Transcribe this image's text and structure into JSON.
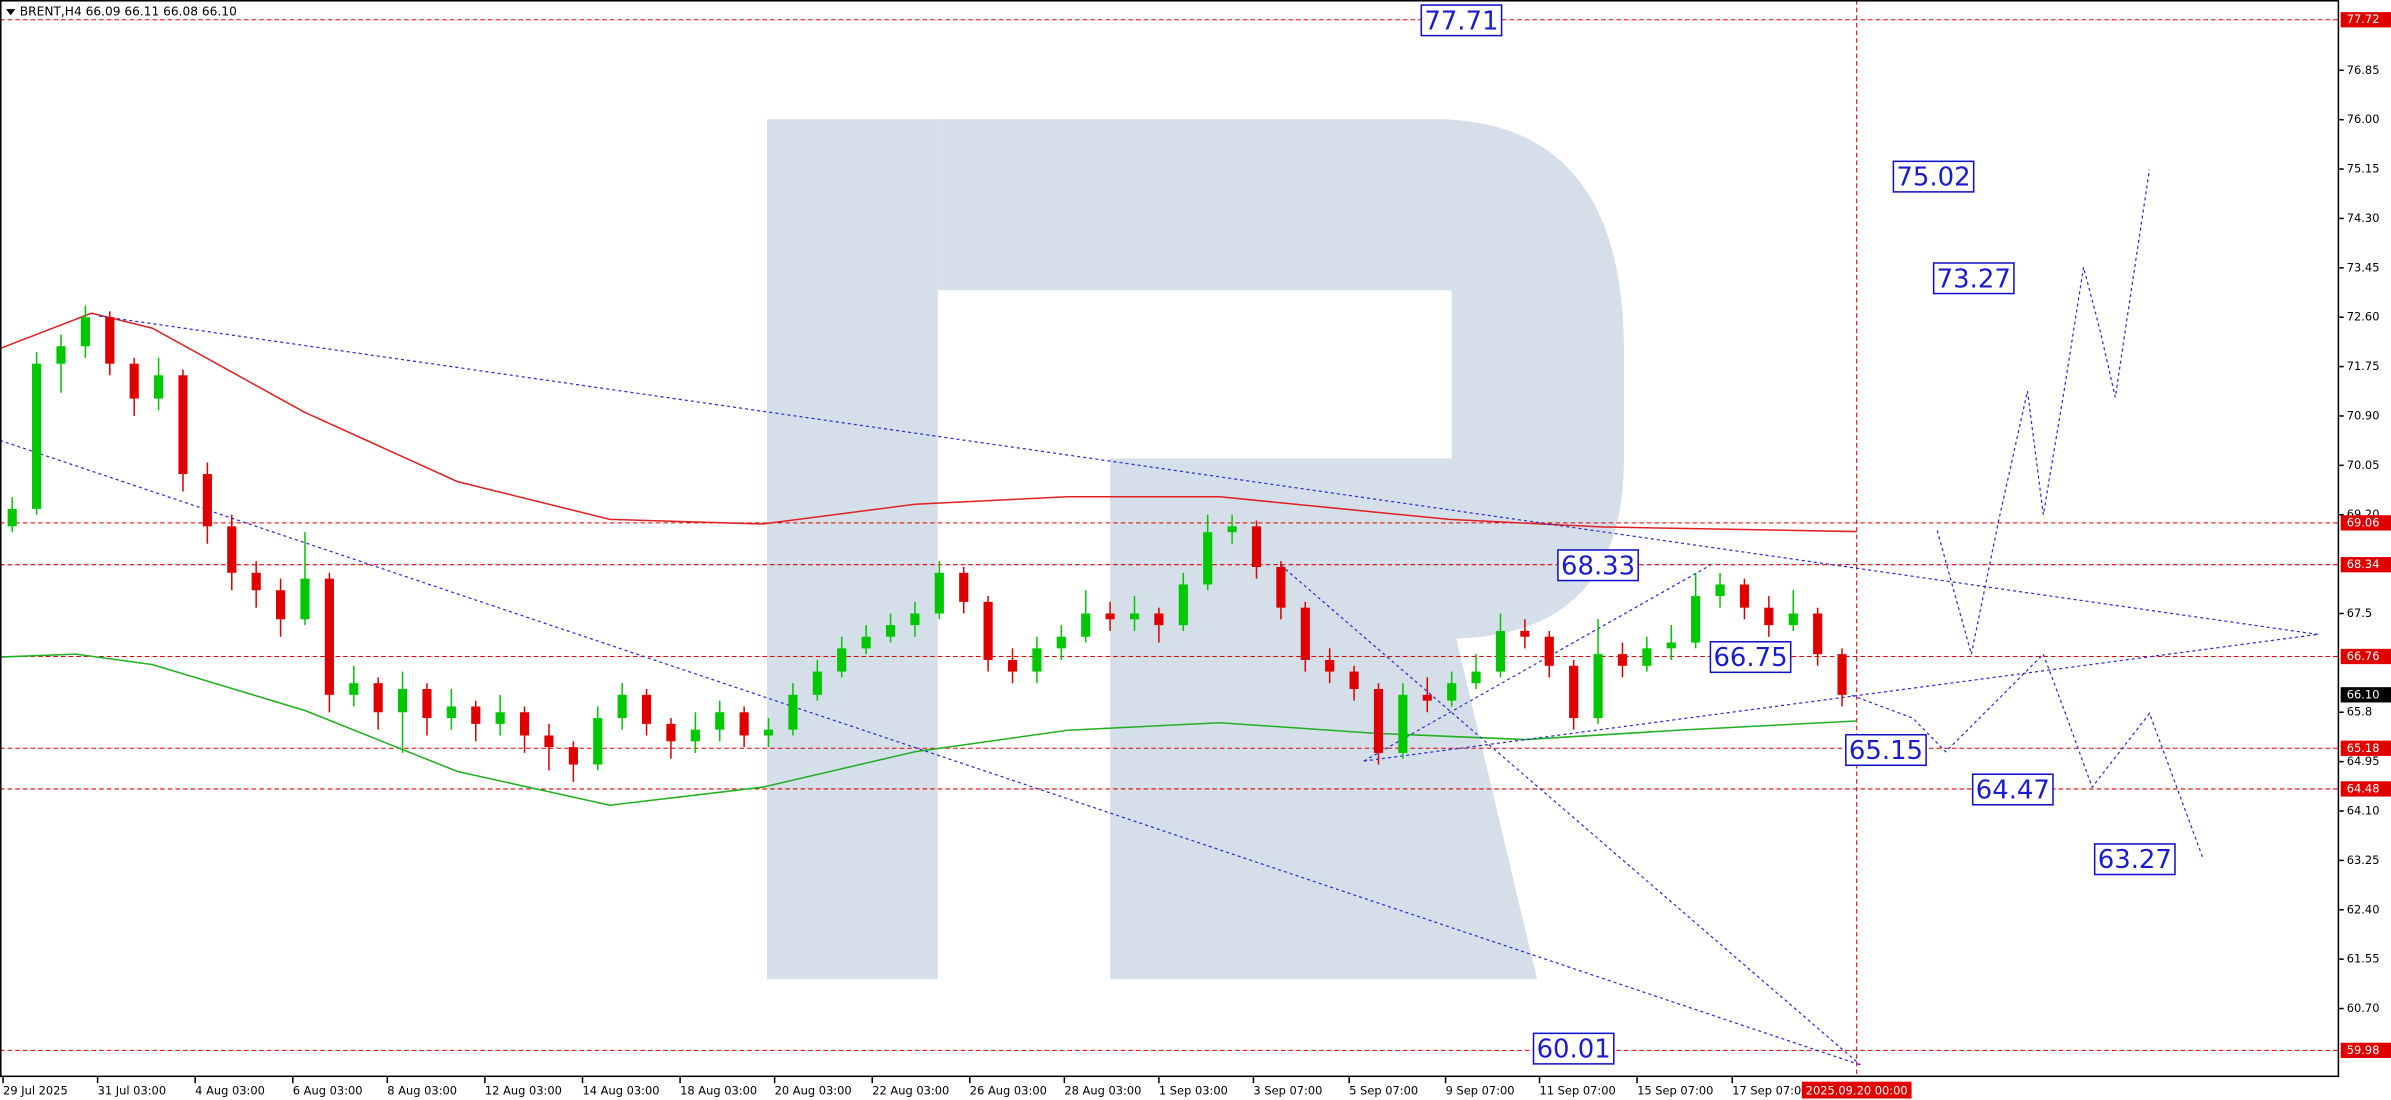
{
  "chart_data": {
    "type": "candlestick",
    "title": "BRENT,H4  66.09 66.11 66.08 66.10",
    "xlim": [
      -0.5,
      95.375
    ],
    "ylim": [
      59.52,
      78.06
    ],
    "yticks": [
      76.85,
      {
        "value": 76,
        "label": "76.00"
      },
      75.15,
      {
        "value": 74.3,
        "label": "74.30"
      },
      73.45,
      {
        "value": 72.6,
        "label": "72.60"
      },
      71.75,
      {
        "value": 70.9,
        "label": "70.90"
      },
      70.05,
      {
        "value": 69.2,
        "label": "69.20"
      },
      67.5,
      65.8,
      64.95,
      {
        "value": 64.1,
        "label": "64.10"
      },
      63.25,
      {
        "value": 62.4,
        "label": "62.40"
      },
      61.55,
      {
        "value": 60.7,
        "label": "60.70"
      }
    ],
    "xticks": [
      {
        "value": -0.375,
        "label": "29 Jul 2025"
      },
      {
        "value": 3.5,
        "label": "31 Jul 03:00"
      },
      {
        "value": 7.5,
        "label": "4 Aug 03:00"
      },
      {
        "value": 11.5,
        "label": "6 Aug 03:00"
      },
      {
        "value": 15.375,
        "label": "8 Aug 03:00"
      },
      {
        "value": 19.375,
        "label": "12 Aug 03:00"
      },
      {
        "value": 23.375,
        "label": "14 Aug 03:00"
      },
      {
        "value": 27.375,
        "label": "18 Aug 03:00"
      },
      {
        "value": 31.25,
        "label": "20 Aug 03:00"
      },
      {
        "value": 35.25,
        "label": "22 Aug 03:00"
      },
      {
        "value": 39.25,
        "label": "26 Aug 03:00"
      },
      {
        "value": 43.125,
        "label": "28 Aug 03:00"
      },
      {
        "value": 47,
        "label": "1 Sep 03:00"
      },
      {
        "value": 50.875,
        "label": "3 Sep 07:00"
      },
      {
        "value": 54.8,
        "label": "5 Sep 07:00"
      },
      {
        "value": 58.75,
        "label": "9 Sep 07:00"
      },
      {
        "value": 62.6,
        "label": "11 Sep 07:00"
      },
      {
        "value": 66.6,
        "label": "15 Sep 07:00"
      },
      {
        "value": 70.5,
        "label": "17 Sep 07:00"
      }
    ],
    "x_marker": {
      "value": 75.6,
      "label": "2025.09.20 00:00",
      "color": "#e00000"
    },
    "up_color": "#00c800",
    "down_color": "#e00000",
    "ohlc": [
      [
        69.0,
        69.5,
        68.9,
        69.3
      ],
      [
        69.3,
        72.0,
        69.2,
        71.8
      ],
      [
        71.8,
        72.3,
        71.3,
        72.1
      ],
      [
        72.1,
        72.8,
        71.9,
        72.6
      ],
      [
        72.6,
        72.7,
        71.6,
        71.8
      ],
      [
        71.8,
        71.9,
        70.9,
        71.2
      ],
      [
        71.2,
        71.9,
        71.0,
        71.6
      ],
      [
        71.6,
        71.7,
        69.6,
        69.9
      ],
      [
        69.9,
        70.1,
        68.7,
        69.0
      ],
      [
        69.0,
        69.2,
        67.9,
        68.2
      ],
      [
        68.2,
        68.4,
        67.6,
        67.9
      ],
      [
        67.9,
        68.1,
        67.1,
        67.4
      ],
      [
        67.4,
        68.9,
        67.3,
        68.1
      ],
      [
        68.1,
        68.2,
        65.8,
        66.1
      ],
      [
        66.1,
        66.6,
        65.9,
        66.3
      ],
      [
        66.3,
        66.4,
        65.5,
        65.8
      ],
      [
        65.8,
        66.5,
        65.1,
        66.2
      ],
      [
        66.2,
        66.3,
        65.4,
        65.7
      ],
      [
        65.7,
        66.2,
        65.5,
        65.9
      ],
      [
        65.9,
        66.0,
        65.3,
        65.6
      ],
      [
        65.6,
        66.1,
        65.4,
        65.8
      ],
      [
        65.8,
        65.9,
        65.1,
        65.4
      ],
      [
        65.4,
        65.6,
        64.8,
        65.2
      ],
      [
        65.2,
        65.3,
        64.6,
        64.9
      ],
      [
        64.9,
        65.9,
        64.8,
        65.7
      ],
      [
        65.7,
        66.3,
        65.5,
        66.1
      ],
      [
        66.1,
        66.2,
        65.4,
        65.6
      ],
      [
        65.6,
        65.7,
        65.0,
        65.3
      ],
      [
        65.3,
        65.8,
        65.1,
        65.5
      ],
      [
        65.5,
        66.0,
        65.3,
        65.8
      ],
      [
        65.8,
        65.9,
        65.2,
        65.4
      ],
      [
        65.4,
        65.7,
        65.2,
        65.5
      ],
      [
        65.5,
        66.3,
        65.4,
        66.1
      ],
      [
        66.1,
        66.7,
        66.0,
        66.5
      ],
      [
        66.5,
        67.1,
        66.4,
        66.9
      ],
      [
        66.9,
        67.3,
        66.8,
        67.1
      ],
      [
        67.1,
        67.5,
        67.0,
        67.3
      ],
      [
        67.3,
        67.7,
        67.1,
        67.5
      ],
      [
        67.5,
        68.4,
        67.4,
        68.2
      ],
      [
        68.2,
        68.3,
        67.5,
        67.7
      ],
      [
        67.7,
        67.8,
        66.5,
        66.7
      ],
      [
        66.7,
        66.9,
        66.3,
        66.5
      ],
      [
        66.5,
        67.1,
        66.3,
        66.9
      ],
      [
        66.9,
        67.3,
        66.7,
        67.1
      ],
      [
        67.1,
        67.9,
        67.0,
        67.5
      ],
      [
        67.5,
        67.7,
        67.2,
        67.4
      ],
      [
        67.4,
        67.8,
        67.2,
        67.5
      ],
      [
        67.5,
        67.6,
        67.0,
        67.3
      ],
      [
        67.3,
        68.2,
        67.2,
        68.0
      ],
      [
        68.0,
        69.2,
        67.9,
        68.9
      ],
      [
        68.9,
        69.2,
        68.7,
        69.0
      ],
      [
        69.0,
        69.1,
        68.1,
        68.3
      ],
      [
        68.3,
        68.4,
        67.4,
        67.6
      ],
      [
        67.6,
        67.7,
        66.5,
        66.7
      ],
      [
        66.7,
        66.9,
        66.3,
        66.5
      ],
      [
        66.5,
        66.6,
        66.0,
        66.2
      ],
      [
        66.2,
        66.3,
        64.9,
        65.1
      ],
      [
        65.1,
        66.3,
        65.0,
        66.1
      ],
      [
        66.1,
        66.4,
        65.8,
        66.0
      ],
      [
        66.0,
        66.5,
        65.9,
        66.3
      ],
      [
        66.3,
        66.8,
        66.2,
        66.5
      ],
      [
        66.5,
        67.5,
        66.4,
        67.2
      ],
      [
        67.2,
        67.4,
        66.9,
        67.1
      ],
      [
        67.1,
        67.2,
        66.4,
        66.6
      ],
      [
        66.6,
        66.7,
        65.5,
        65.7
      ],
      [
        65.7,
        67.4,
        65.6,
        66.8
      ],
      [
        66.8,
        67.0,
        66.4,
        66.6
      ],
      [
        66.6,
        67.1,
        66.5,
        66.9
      ],
      [
        66.9,
        67.3,
        66.7,
        67.0
      ],
      [
        67.0,
        68.2,
        66.9,
        67.8
      ],
      [
        67.8,
        68.2,
        67.6,
        68.0
      ],
      [
        68.0,
        68.1,
        67.4,
        67.6
      ],
      [
        67.6,
        67.8,
        67.1,
        67.3
      ],
      [
        67.3,
        67.9,
        67.2,
        67.5
      ],
      [
        67.5,
        67.6,
        66.6,
        66.8
      ],
      [
        66.8,
        66.9,
        65.9,
        66.1
      ]
    ],
    "moving_averages": [
      {
        "color": "#e02020",
        "x": [
          -0.5,
          3.25,
          5.75,
          12,
          18.25,
          24.5,
          30.75,
          37,
          43.25,
          49.5,
          52.6,
          58.9,
          65.1,
          75.6
        ],
        "values": [
          72.06,
          72.67,
          72.41,
          70.96,
          69.77,
          69.12,
          69.04,
          69.38,
          69.51,
          69.51,
          69.38,
          69.12,
          68.99,
          68.91
        ]
      },
      {
        "color": "#20b020",
        "x": [
          -0.5,
          2.6,
          5.75,
          12,
          18.25,
          24.5,
          30.75,
          37,
          43.25,
          49.5,
          55.75,
          62,
          68.25,
          75.6
        ],
        "values": [
          66.75,
          66.8,
          66.62,
          65.83,
          64.78,
          64.2,
          64.51,
          65.12,
          65.49,
          65.62,
          65.44,
          65.33,
          65.49,
          65.65
        ]
      }
    ],
    "trendlines": [
      {
        "x": [
          3.56,
          94.5
        ],
        "values": [
          72.62,
          67.14
        ]
      },
      {
        "x": [
          -0.5,
          75.75
        ],
        "values": [
          70.48,
          59.73
        ]
      },
      {
        "x": [
          55.4,
          94.5
        ],
        "values": [
          64.96,
          67.14
        ]
      },
      {
        "x": [
          52,
          75.75
        ],
        "values": [
          68.33,
          59.73
        ]
      },
      {
        "x": [
          55.4,
          69.6
        ],
        "values": [
          64.96,
          68.33
        ]
      }
    ],
    "forecast": [
      {
        "color": "#2a2ad8",
        "x": [
          78.9,
          80.3,
          81.4,
          82.6,
          83.25,
          84.1,
          84.9,
          85.6,
          86.2,
          86.9,
          87.6
        ],
        "values": [
          68.93,
          66.8,
          69.06,
          71.33,
          69.2,
          71.33,
          73.46,
          72.33,
          71.22,
          73.19,
          75.14
        ]
      },
      {
        "color": "#2a2ad8",
        "x": [
          75.4,
          77.9,
          79.25,
          83.25,
          84.25,
          85.25,
          87.6,
          89.8
        ],
        "values": [
          66.09,
          65.7,
          65.12,
          66.8,
          65.67,
          64.51,
          65.78,
          63.28
        ]
      }
    ],
    "targets": [
      {
        "x": 59.4,
        "value": 77.71
      },
      {
        "x": 78.75,
        "value": 75.02
      },
      {
        "x": 80.4,
        "value": 73.27
      },
      {
        "x": 65,
        "value": 68.33
      },
      {
        "x": 71.25,
        "value": 66.75
      },
      {
        "x": 76.8,
        "value": 65.15
      },
      {
        "x": 82,
        "value": 64.47
      },
      {
        "x": 87,
        "value": 63.27
      },
      {
        "x": 64,
        "value": 60.01
      }
    ],
    "levels": [
      77.72,
      69.06,
      68.34,
      66.76,
      65.18,
      64.48,
      59.98
    ],
    "level_color": "#e00000",
    "last_price": {
      "value": 66.1,
      "label": "66.10"
    }
  }
}
